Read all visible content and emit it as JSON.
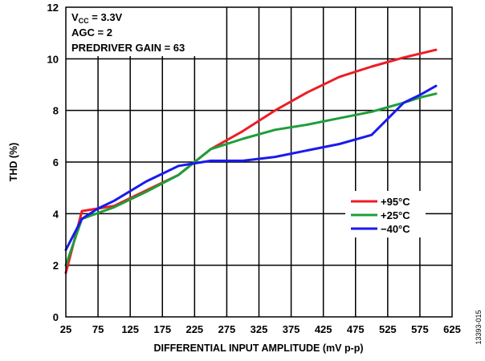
{
  "chart_data": {
    "type": "line",
    "xlabel": "DIFFERENTIAL INPUT AMPLITUDE (mV p-p)",
    "ylabel": "THD (%)",
    "xlim": [
      25,
      625
    ],
    "ylim": [
      0,
      12
    ],
    "xticks": [
      "25",
      "75",
      "125",
      "175",
      "225",
      "275",
      "325",
      "375",
      "425",
      "475",
      "525",
      "575",
      "625"
    ],
    "yticks": [
      "0",
      "2",
      "4",
      "6",
      "8",
      "10",
      "12"
    ],
    "grid": true,
    "conditions": {
      "vcc_main": "V",
      "vcc_sub": "CC",
      "vcc_value": " = 3.3V",
      "agc": "AGC = 2",
      "predriver": "PREDRIVER GAIN = 63"
    },
    "legend_position": "right",
    "figure_id": "13393-015",
    "series": [
      {
        "name": "+95°C",
        "color": "#ee1c24",
        "x": [
          25,
          50,
          100,
          150,
          200,
          250,
          300,
          350,
          400,
          450,
          500,
          550,
          575,
          600
        ],
        "y": [
          1.7,
          4.1,
          4.3,
          4.9,
          5.5,
          6.5,
          7.2,
          8.0,
          8.7,
          9.3,
          9.7,
          10.05,
          10.2,
          10.35
        ]
      },
      {
        "name": "+25°C",
        "color": "#1e9e3a",
        "x": [
          25,
          50,
          100,
          150,
          200,
          250,
          300,
          350,
          400,
          450,
          500,
          550,
          575,
          600
        ],
        "y": [
          2.0,
          3.8,
          4.25,
          4.85,
          5.5,
          6.5,
          6.9,
          7.25,
          7.45,
          7.7,
          7.95,
          8.3,
          8.5,
          8.65
        ]
      },
      {
        "name": "−40°C",
        "color": "#1a1aee",
        "x": [
          25,
          50,
          75,
          100,
          150,
          175,
          200,
          225,
          250,
          275,
          300,
          350,
          400,
          450,
          500,
          550,
          575,
          600
        ],
        "y": [
          2.6,
          3.8,
          4.2,
          4.5,
          5.25,
          5.55,
          5.85,
          5.95,
          6.05,
          6.05,
          6.05,
          6.2,
          6.45,
          6.7,
          7.05,
          8.3,
          8.6,
          8.95
        ]
      }
    ]
  }
}
